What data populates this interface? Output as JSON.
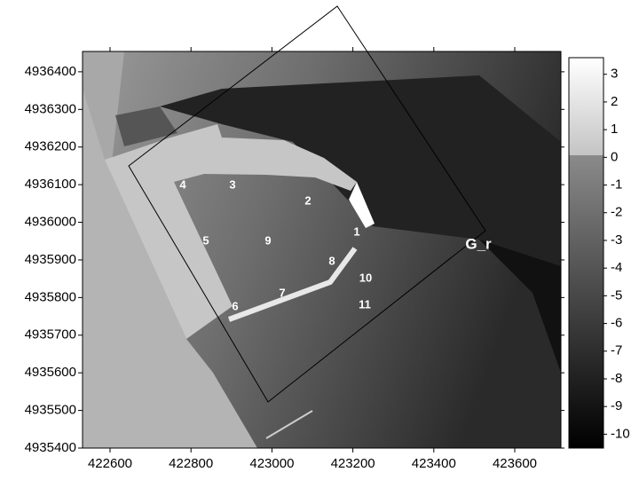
{
  "chart_data": {
    "type": "map",
    "xlim": [
      422532,
      423714
    ],
    "xticks": [
      422600,
      422800,
      423000,
      423200,
      423400,
      423600
    ],
    "ylim": [
      4935400,
      4936454
    ],
    "yticks": [
      4935400,
      4935500,
      4935600,
      4935700,
      4935800,
      4935900,
      4936000,
      4936100,
      4936200,
      4936300,
      4936400
    ],
    "colorbar": {
      "lim": [
        -10.5,
        3.6
      ],
      "ticks": [
        3,
        2,
        1,
        0,
        -1,
        -2,
        -3,
        -4,
        -5,
        -6,
        -7,
        -8,
        -9,
        -10
      ]
    },
    "point_labels": [
      "1",
      "2",
      "3",
      "4",
      "5",
      "6",
      "7",
      "8",
      "9",
      "10",
      "11"
    ],
    "annotation": "G_r"
  }
}
